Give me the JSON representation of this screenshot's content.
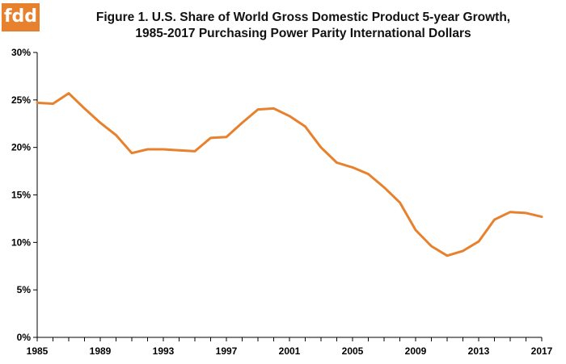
{
  "logo": {
    "text": "fdd",
    "color": "#e8812d"
  },
  "chart_data": {
    "type": "line",
    "title_line1": "Figure 1. U.S. Share of World Gross Domestic Product 5-year Growth,",
    "title_line2": "1985-2017 Purchasing Power Parity International Dollars",
    "xlabel": "",
    "ylabel": "",
    "xlim": [
      1985,
      2017
    ],
    "ylim": [
      0,
      30
    ],
    "x_ticks": [
      1985,
      1989,
      1993,
      1997,
      2001,
      2005,
      2009,
      2013,
      2017
    ],
    "y_ticks": [
      0,
      5,
      10,
      15,
      20,
      25,
      30
    ],
    "y_tick_labels": [
      "0%",
      "5%",
      "10%",
      "15%",
      "20%",
      "25%",
      "30%"
    ],
    "grid": false,
    "legend": "none",
    "series": [
      {
        "color": "#e8812d",
        "x": [
          1985,
          1986,
          1987,
          1988,
          1989,
          1990,
          1991,
          1992,
          1993,
          1994,
          1995,
          1996,
          1997,
          1998,
          1999,
          2000,
          2001,
          2002,
          2003,
          2004,
          2005,
          2006,
          2007,
          2008,
          2009,
          2010,
          2011,
          2012,
          2013,
          2014,
          2015,
          2016,
          2017
        ],
        "values": [
          24.7,
          24.6,
          25.7,
          24.1,
          22.6,
          21.3,
          19.4,
          19.8,
          19.8,
          19.7,
          19.6,
          21.0,
          21.1,
          22.6,
          24.0,
          24.1,
          23.3,
          22.2,
          20.0,
          18.4,
          17.9,
          17.2,
          15.8,
          14.2,
          11.3,
          9.6,
          8.6,
          9.1,
          10.1,
          12.4,
          13.2,
          13.1,
          12.7
        ]
      }
    ]
  }
}
